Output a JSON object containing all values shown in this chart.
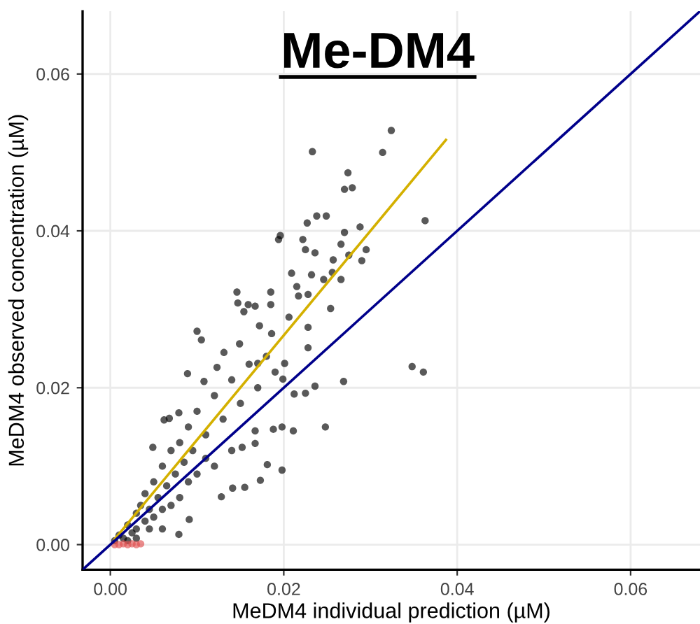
{
  "chart_data": {
    "type": "scatter",
    "title": "Me-DM4",
    "xlabel": "MeDM4 individual prediction (µM)",
    "ylabel": "MeDM4 observed concentration (µM)",
    "xlim": [
      -0.0032,
      0.068
    ],
    "ylim": [
      -0.0032,
      0.068
    ],
    "xticks": [
      {
        "value": 0,
        "label": "0.00"
      },
      {
        "value": 0.02,
        "label": "0.02"
      },
      {
        "value": 0.04,
        "label": "0.04"
      },
      {
        "value": 0.06,
        "label": "0.06"
      }
    ],
    "yticks": [
      {
        "value": 0,
        "label": "0.00"
      },
      {
        "value": 0.02,
        "label": "0.02"
      },
      {
        "value": 0.04,
        "label": "0.04"
      },
      {
        "value": 0.06,
        "label": "0.06"
      }
    ],
    "grid": true,
    "marker": "circle",
    "series": [
      {
        "color": "#000000",
        "x": [
          0.0324,
          0.0314,
          0.0233,
          0.0274,
          0.027,
          0.0279,
          0.0238,
          0.0249,
          0.0227,
          0.0363,
          0.0288,
          0.027,
          0.0196,
          0.0194,
          0.0222,
          0.0225,
          0.0236,
          0.0266,
          0.0275,
          0.0295,
          0.029,
          0.0257,
          0.0209,
          0.0232,
          0.0256,
          0.0246,
          0.0266,
          0.0215,
          0.0146,
          0.0185,
          0.0217,
          0.0228,
          0.0147,
          0.0159,
          0.0185,
          0.0167,
          0.0154,
          0.0254,
          0.01,
          0.0105,
          0.0131,
          0.0149,
          0.0172,
          0.0186,
          0.0206,
          0.0228,
          0.0228,
          0.0201,
          0.0089,
          0.0108,
          0.0123,
          0.017,
          0.0199,
          0.0236,
          0.0269,
          0.0225,
          0.0212,
          0.0348,
          0.0361,
          0.0248,
          0.0211,
          0.0198,
          0.0188,
          0.0198,
          0.0181,
          0.0173,
          0.0155,
          0.0141,
          0.0128,
          0.0091,
          0.0079,
          0.0068,
          0.0049,
          0.0062,
          0.0079,
          0.0167,
          0.0152,
          0.0167,
          0.0005,
          0.001,
          0.0015,
          0.002,
          0.0025,
          0.003,
          0.003,
          0.0035,
          0.004,
          0.004,
          0.0045,
          0.005,
          0.005,
          0.0055,
          0.006,
          0.006,
          0.0065,
          0.007,
          0.007,
          0.0075,
          0.008,
          0.008,
          0.0085,
          0.009,
          0.009,
          0.0095,
          0.01,
          0.01,
          0.011,
          0.011,
          0.012,
          0.012,
          0.013,
          0.014,
          0.014,
          0.015,
          0.016,
          0.017,
          0.018,
          0.019,
          0.002,
          0.003,
          0.0045,
          0.006
        ],
        "values": [
          0.0528,
          0.05,
          0.0501,
          0.0474,
          0.0453,
          0.0455,
          0.0419,
          0.0419,
          0.041,
          0.0413,
          0.0405,
          0.0398,
          0.0394,
          0.0389,
          0.0389,
          0.0376,
          0.0372,
          0.0383,
          0.0369,
          0.0376,
          0.0362,
          0.0363,
          0.0346,
          0.0344,
          0.0347,
          0.0338,
          0.0338,
          0.0329,
          0.0322,
          0.0322,
          0.0317,
          0.0319,
          0.0308,
          0.0306,
          0.0306,
          0.0304,
          0.0297,
          0.0301,
          0.0272,
          0.0261,
          0.0245,
          0.0256,
          0.0279,
          0.0269,
          0.029,
          0.0277,
          0.0251,
          0.0231,
          0.0218,
          0.0208,
          0.0226,
          0.0231,
          0.0211,
          0.0202,
          0.0208,
          0.0193,
          0.0192,
          0.0227,
          0.022,
          0.015,
          0.0145,
          0.015,
          0.0147,
          0.0095,
          0.0102,
          0.0082,
          0.0073,
          0.0072,
          0.0061,
          0.0032,
          0.0013,
          0.0161,
          0.0124,
          0.0159,
          0.0168,
          0.0145,
          0.0124,
          0.0129,
          0.0005,
          0.0012,
          0.0008,
          0.0025,
          0.0015,
          0.004,
          0.002,
          0.005,
          0.003,
          0.0065,
          0.0045,
          0.008,
          0.0035,
          0.006,
          0.01,
          0.0045,
          0.0075,
          0.012,
          0.005,
          0.009,
          0.013,
          0.006,
          0.0105,
          0.015,
          0.008,
          0.012,
          0.017,
          0.009,
          0.014,
          0.011,
          0.019,
          0.01,
          0.016,
          0.021,
          0.012,
          0.018,
          0.023,
          0.02,
          0.024,
          0.022,
          0.0005,
          0.0008,
          0.002,
          0.002
        ]
      },
      {
        "color": "#e05050",
        "x": [
          0.0005,
          0.001,
          0.0015,
          0.002,
          0.0025,
          0.003,
          0.0035
        ],
        "values": [
          0.0,
          0.0,
          0.0001,
          0.0,
          0.0001,
          0.0,
          0.0001
        ]
      },
      {
        "type": "line",
        "marker": "none",
        "color": "#d4b000",
        "x": [
          0.0005,
          0.0387
        ],
        "values": [
          0.0007,
          0.0516
        ]
      },
      {
        "type": "line",
        "marker": "none",
        "color": "#00008b",
        "x": [
          -0.0032,
          0.068
        ],
        "values": [
          -0.0032,
          0.068
        ]
      }
    ]
  }
}
